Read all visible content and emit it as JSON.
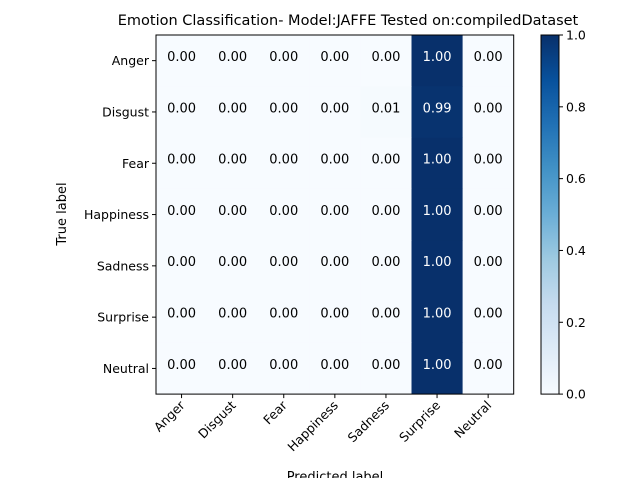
{
  "chart_data": {
    "type": "heatmap",
    "title": "Emotion Classification- Model:JAFFE Tested on:compiledDataset",
    "xlabel": "Predicted label",
    "ylabel": "True label",
    "x_categories": [
      "Anger",
      "Disgust",
      "Fear",
      "Happiness",
      "Sadness",
      "Surprise",
      "Neutral"
    ],
    "y_categories": [
      "Anger",
      "Disgust",
      "Fear",
      "Happiness",
      "Sadness",
      "Surprise",
      "Neutral"
    ],
    "values": [
      [
        0.0,
        0.0,
        0.0,
        0.0,
        0.0,
        1.0,
        0.0
      ],
      [
        0.0,
        0.0,
        0.0,
        0.0,
        0.01,
        0.99,
        0.0
      ],
      [
        0.0,
        0.0,
        0.0,
        0.0,
        0.0,
        1.0,
        0.0
      ],
      [
        0.0,
        0.0,
        0.0,
        0.0,
        0.0,
        1.0,
        0.0
      ],
      [
        0.0,
        0.0,
        0.0,
        0.0,
        0.0,
        1.0,
        0.0
      ],
      [
        0.0,
        0.0,
        0.0,
        0.0,
        0.0,
        1.0,
        0.0
      ],
      [
        0.0,
        0.0,
        0.0,
        0.0,
        0.0,
        1.0,
        0.0
      ]
    ],
    "value_format": "0.00",
    "colormap": "Blues",
    "colorbar": {
      "range": [
        0.0,
        1.0
      ],
      "ticks": [
        0.0,
        0.2,
        0.4,
        0.6,
        0.8,
        1.0
      ],
      "tick_labels": [
        "0.0",
        "0.2",
        "0.4",
        "0.6",
        "0.8",
        "1.0"
      ]
    }
  }
}
